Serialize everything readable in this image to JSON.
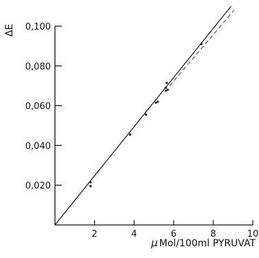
{
  "chart_data": {
    "type": "scatter",
    "xlabel": "μ Mol/100ml PYRUVAT",
    "xlabel_prefix": "μ",
    "xlabel_rest": "Mol/100ml PYRUVAT",
    "ylabel": "ΔE",
    "xlim": [
      0,
      10
    ],
    "ylim": [
      0,
      0.1
    ],
    "x_ticks": [
      {
        "value": 2,
        "label": "2"
      },
      {
        "value": 4,
        "label": "4"
      },
      {
        "value": 6,
        "label": "6"
      },
      {
        "value": 8,
        "label": "8"
      },
      {
        "value": 10,
        "label": "10"
      }
    ],
    "y_ticks": [
      {
        "value": 0.02,
        "label": "0,020"
      },
      {
        "value": 0.04,
        "label": "0,040"
      },
      {
        "value": 0.06,
        "label": "0,060"
      },
      {
        "value": 0.08,
        "label": "0,080"
      },
      {
        "value": 0.1,
        "label": "0,100"
      }
    ],
    "grid": false,
    "series": [
      {
        "style": "points",
        "color": "#111111",
        "points": [
          {
            "x": 1.8,
            "y": 0.0215
          },
          {
            "x": 1.8,
            "y": 0.0195
          },
          {
            "x": 3.8,
            "y": 0.0455
          },
          {
            "x": 4.6,
            "y": 0.0555
          },
          {
            "x": 5.1,
            "y": 0.0615
          },
          {
            "x": 5.2,
            "y": 0.062
          },
          {
            "x": 5.6,
            "y": 0.0675
          },
          {
            "x": 5.6,
            "y": 0.069
          },
          {
            "x": 5.65,
            "y": 0.0715
          },
          {
            "x": 5.7,
            "y": 0.068
          },
          {
            "x": 7.4,
            "y": 0.091
          }
        ]
      },
      {
        "style": "solid-line",
        "color": "#111111",
        "points": [
          {
            "x": 0,
            "y": 0
          },
          {
            "x": 8.9,
            "y": 0.11
          }
        ]
      },
      {
        "style": "dashed-line",
        "color": "#555555",
        "points": [
          {
            "x": 5.8,
            "y": 0.07
          },
          {
            "x": 9.05,
            "y": 0.108
          }
        ]
      }
    ]
  }
}
